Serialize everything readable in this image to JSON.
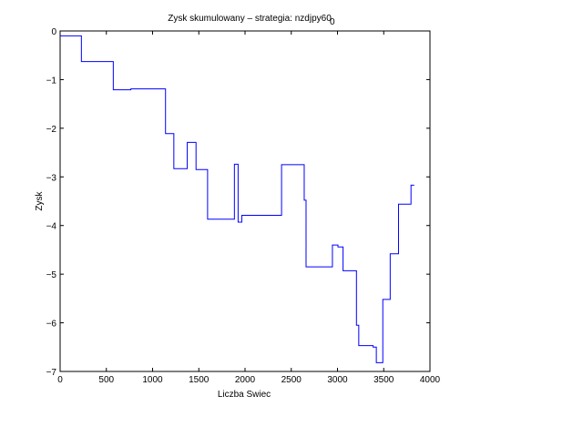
{
  "chart_data": {
    "type": "line",
    "title": "Zysk skumulowany – strategia: nzdjpy60",
    "title_subscript": "0",
    "xlabel": "Liczba Swiec",
    "ylabel": "Zysk",
    "xlim": [
      0,
      4000
    ],
    "ylim": [
      -7,
      0
    ],
    "xticks": [
      0,
      500,
      1000,
      1500,
      2000,
      2500,
      3000,
      3500,
      4000
    ],
    "yticks": [
      0,
      -1,
      -2,
      -3,
      -4,
      -5,
      -6,
      -7
    ],
    "grid": false,
    "line_style": "step",
    "series": [
      {
        "color": "#0000ff",
        "points": [
          [
            0,
            -0.1
          ],
          [
            230,
            -0.1
          ],
          [
            230,
            -0.63
          ],
          [
            575,
            -0.63
          ],
          [
            575,
            -1.21
          ],
          [
            765,
            -1.21
          ],
          [
            765,
            -1.19
          ],
          [
            1140,
            -1.19
          ],
          [
            1140,
            -2.11
          ],
          [
            1230,
            -2.11
          ],
          [
            1230,
            -2.83
          ],
          [
            1375,
            -2.83
          ],
          [
            1375,
            -2.29
          ],
          [
            1470,
            -2.29
          ],
          [
            1470,
            -2.85
          ],
          [
            1595,
            -2.85
          ],
          [
            1595,
            -3.87
          ],
          [
            1885,
            -3.87
          ],
          [
            1885,
            -2.74
          ],
          [
            1925,
            -2.74
          ],
          [
            1925,
            -3.93
          ],
          [
            1965,
            -3.93
          ],
          [
            1965,
            -3.79
          ],
          [
            2395,
            -3.79
          ],
          [
            2395,
            -2.75
          ],
          [
            2640,
            -2.75
          ],
          [
            2640,
            -3.48
          ],
          [
            2660,
            -3.48
          ],
          [
            2660,
            -4.85
          ],
          [
            2945,
            -4.85
          ],
          [
            2945,
            -4.4
          ],
          [
            3005,
            -4.4
          ],
          [
            3005,
            -4.44
          ],
          [
            3060,
            -4.44
          ],
          [
            3060,
            -4.93
          ],
          [
            3205,
            -4.93
          ],
          [
            3205,
            -6.05
          ],
          [
            3230,
            -6.05
          ],
          [
            3230,
            -6.47
          ],
          [
            3385,
            -6.47
          ],
          [
            3385,
            -6.5
          ],
          [
            3420,
            -6.5
          ],
          [
            3420,
            -6.82
          ],
          [
            3490,
            -6.82
          ],
          [
            3490,
            -5.52
          ],
          [
            3570,
            -5.52
          ],
          [
            3570,
            -4.58
          ],
          [
            3660,
            -4.58
          ],
          [
            3660,
            -3.56
          ],
          [
            3795,
            -3.56
          ],
          [
            3795,
            -3.17
          ],
          [
            3830,
            -3.17
          ]
        ]
      }
    ]
  }
}
